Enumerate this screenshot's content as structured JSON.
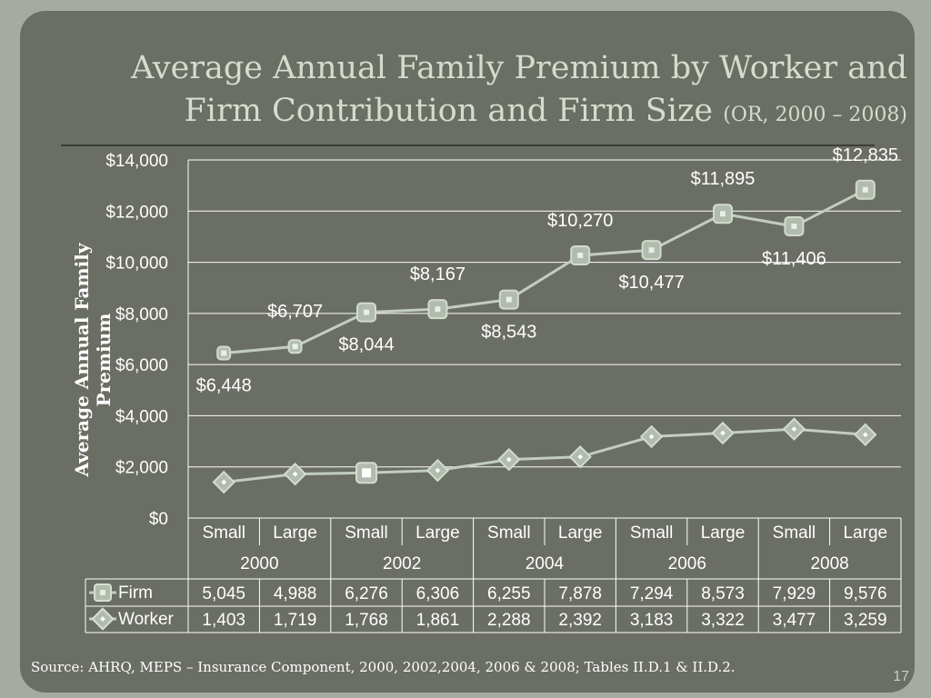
{
  "slide": {
    "title_main": "Average Annual Family Premium by Worker and Firm Contribution and Firm Size",
    "title_sub": "(OR, 2000 – 2008)",
    "source": "Source: AHRQ, MEPS – Insurance Component, 2000, 2002,2004, 2006 & 2008; Tables II.D.1 & II.D.2.",
    "page_number": "17"
  },
  "chart_data": {
    "type": "line",
    "ylabel": "Average Annual Family Premium",
    "ylim": [
      0,
      14000
    ],
    "yticks": [
      "$0",
      "$2,000",
      "$4,000",
      "$6,000",
      "$8,000",
      "$10,000",
      "$12,000",
      "$14,000"
    ],
    "categories": [
      "Small",
      "Large",
      "Small",
      "Large",
      "Small",
      "Large",
      "Small",
      "Large",
      "Small",
      "Large"
    ],
    "years": [
      "2000",
      "2002",
      "2004",
      "2006",
      "2008"
    ],
    "total_labels": [
      "$6,448",
      "$6,707",
      "$8,044",
      "$8,167",
      "$8,543",
      "$10,270",
      "$10,477",
      "$11,895",
      "$11,406",
      "$12,835"
    ],
    "total_values": [
      6448,
      6707,
      8044,
      8167,
      8543,
      10270,
      10477,
      11895,
      11406,
      12835
    ],
    "series": [
      {
        "name": "Firm",
        "values": [
          5045,
          4988,
          6276,
          6306,
          6255,
          7878,
          7294,
          8573,
          7929,
          9576
        ],
        "table": [
          "5,045",
          "4,988",
          "6,276",
          "6,306",
          "6,255",
          "7,878",
          "7,294",
          "8,573",
          "7,929",
          "9,576"
        ]
      },
      {
        "name": "Worker",
        "values": [
          1403,
          1719,
          1768,
          1861,
          2288,
          2392,
          3183,
          3322,
          3477,
          3259
        ],
        "table": [
          "1,403",
          "1,719",
          "1,768",
          "1,861",
          "2,288",
          "2,392",
          "3,183",
          "3,322",
          "3,477",
          "3,259"
        ]
      }
    ],
    "grid": true,
    "legend": "data-table",
    "colors": {
      "line": "#c3cdbf",
      "marker": "#b2bcae",
      "grid": "#ffffff",
      "text": "#ffffff"
    }
  }
}
